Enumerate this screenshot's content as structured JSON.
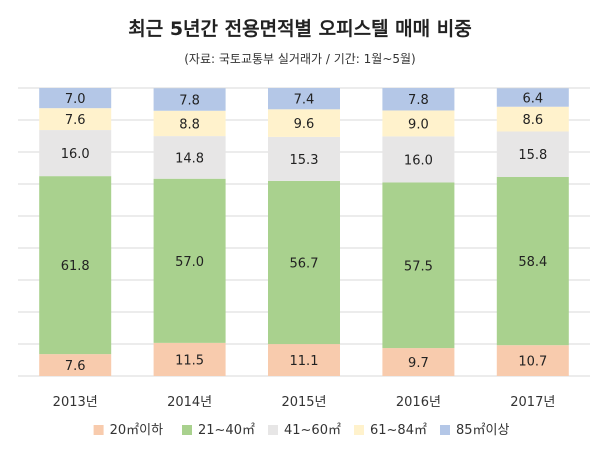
{
  "chart_data": {
    "type": "bar",
    "stacked": true,
    "title": "최근 5년간 전용면적별 오피스텔 매매 비중",
    "subtitle": "(자료: 국토교통부 실거래가 / 기간: 1월~5월)",
    "categories": [
      "2013년",
      "2014년",
      "2015년",
      "2016년",
      "2017년"
    ],
    "series": [
      {
        "name": "20㎡이하",
        "color": "#F8CBAD",
        "values": [
          7.6,
          11.5,
          11.1,
          9.7,
          10.7
        ]
      },
      {
        "name": "21~40㎡",
        "color": "#A9D18E",
        "values": [
          61.8,
          57.0,
          56.7,
          57.5,
          58.4
        ]
      },
      {
        "name": "41~60㎡",
        "color": "#E7E6E6",
        "values": [
          16.0,
          14.8,
          15.3,
          16.0,
          15.8
        ]
      },
      {
        "name": "61~84㎡",
        "color": "#FFF2CC",
        "values": [
          7.6,
          8.8,
          9.6,
          9.0,
          8.6
        ]
      },
      {
        "name": "85㎡이상",
        "color": "#B4C7E7",
        "values": [
          7.0,
          7.8,
          7.4,
          7.8,
          6.4
        ]
      }
    ],
    "ylim": [
      0,
      100
    ],
    "grid": true,
    "legend": "bottom"
  }
}
